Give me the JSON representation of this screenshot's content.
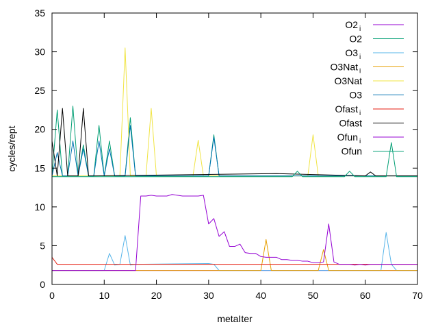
{
  "chart_data": {
    "type": "line",
    "xlabel": "metaIter",
    "ylabel": "cycles/rept",
    "xlim": [
      0,
      70
    ],
    "ylim": [
      0,
      35
    ],
    "xticks": [
      "0",
      "10",
      "20",
      "30",
      "40",
      "50",
      "60",
      "70"
    ],
    "yticks": [
      "0",
      "5",
      "10",
      "15",
      "20",
      "25",
      "30",
      "35"
    ],
    "grid": false,
    "legend_position": "top-right",
    "series": [
      {
        "name": "O2",
        "sub": "i",
        "color": "#9400d3",
        "x": [
          0,
          70
        ],
        "y": [
          1.8,
          1.8
        ]
      },
      {
        "name": "O2",
        "sub": "",
        "color": "#009e73",
        "x": [
          0,
          1,
          2,
          3,
          4,
          5,
          6,
          7,
          8,
          9,
          10,
          11,
          12,
          13,
          14,
          15,
          16,
          30,
          31,
          32,
          70
        ],
        "y": [
          14,
          22.5,
          14,
          14,
          23,
          14,
          18,
          14,
          14,
          20.5,
          14,
          18.5,
          14,
          14,
          14,
          21.5,
          14,
          14,
          19.3,
          14,
          14
        ]
      },
      {
        "name": "O3",
        "sub": "i",
        "color": "#56b4e9",
        "x": [
          0,
          10,
          11,
          12,
          13,
          14,
          15,
          16,
          30,
          31,
          32,
          63,
          64,
          65,
          66,
          70
        ],
        "y": [
          1.8,
          1.8,
          4,
          2.5,
          2.6,
          6.3,
          2.5,
          2.6,
          2.7,
          2.6,
          1.8,
          1.8,
          6.7,
          2.6,
          1.8,
          1.8
        ]
      },
      {
        "name": "O3Nat",
        "sub": "i",
        "color": "#e69f00",
        "x": [
          0,
          40,
          41,
          42,
          51,
          52,
          53,
          70
        ],
        "y": [
          1.8,
          1.8,
          5.8,
          1.8,
          1.8,
          4.5,
          1.8,
          1.8
        ]
      },
      {
        "name": "O3Nat",
        "sub": "",
        "color": "#f0e442",
        "x": [
          0,
          13,
          14,
          15,
          18,
          19,
          20,
          27,
          28,
          29,
          49,
          50,
          51,
          70
        ],
        "y": [
          14,
          14,
          30.5,
          14,
          14,
          22.7,
          14,
          14,
          18.6,
          14,
          14,
          19.3,
          14,
          14
        ]
      },
      {
        "name": "O3",
        "sub": "",
        "color": "#0072b2",
        "x": [
          0,
          1,
          2,
          3,
          4,
          5,
          6,
          7,
          8,
          9,
          10,
          11,
          12,
          13,
          14,
          15,
          16,
          30,
          31,
          32,
          70
        ],
        "y": [
          14,
          17,
          14,
          14,
          18.5,
          14,
          17.5,
          14,
          14,
          18.5,
          14,
          17.5,
          14,
          14,
          14,
          20.5,
          14,
          14,
          19,
          14,
          14
        ]
      },
      {
        "name": "Ofast",
        "sub": "i",
        "color": "#e51e10",
        "x": [
          0,
          1,
          70
        ],
        "y": [
          3.5,
          2.6,
          2.6
        ]
      },
      {
        "name": "Ofast",
        "sub": "",
        "color": "#000000",
        "x": [
          0,
          1,
          2,
          3,
          4,
          5,
          6,
          7,
          8,
          43,
          60,
          61,
          62,
          70
        ],
        "y": [
          18.5,
          14,
          22.7,
          14,
          14,
          14,
          22.7,
          14,
          14,
          14.3,
          14,
          14.5,
          14,
          14
        ]
      },
      {
        "name": "Ofun",
        "sub": "i",
        "color": "#9400d3",
        "x": [
          0,
          16,
          17,
          18,
          19,
          20,
          21,
          22,
          23,
          24,
          25,
          26,
          27,
          28,
          29,
          30,
          31,
          32,
          33,
          34,
          35,
          36,
          37,
          38,
          39,
          40,
          41,
          42,
          43,
          44,
          45,
          46,
          47,
          48,
          49,
          50,
          51,
          52,
          53,
          54,
          55,
          56,
          57,
          58,
          59,
          60,
          61,
          62,
          70
        ],
        "y": [
          1.8,
          1.8,
          11.4,
          11.4,
          11.5,
          11.4,
          11.4,
          11.4,
          11.6,
          11.5,
          11.4,
          11.4,
          11.4,
          11.4,
          11.5,
          7.8,
          8.5,
          6.2,
          6.8,
          4.9,
          4.9,
          5.2,
          4.1,
          4,
          4,
          3.6,
          3.5,
          3.5,
          3.5,
          3.2,
          3.2,
          3.1,
          3.1,
          3,
          3,
          2.8,
          2.8,
          2.9,
          7.8,
          2.9,
          2.6,
          2.6,
          2.6,
          2.5,
          2.6,
          2.5,
          2.6,
          2.6,
          2.6
        ]
      },
      {
        "name": "Ofun",
        "sub": "",
        "color": "#009e73",
        "x": [
          0,
          46,
          47,
          48,
          56,
          57,
          58,
          64,
          65,
          66,
          70
        ],
        "y": [
          13.9,
          13.9,
          14.6,
          13.9,
          13.9,
          14.6,
          13.9,
          13.9,
          18.3,
          13.9,
          13.9
        ]
      }
    ]
  }
}
